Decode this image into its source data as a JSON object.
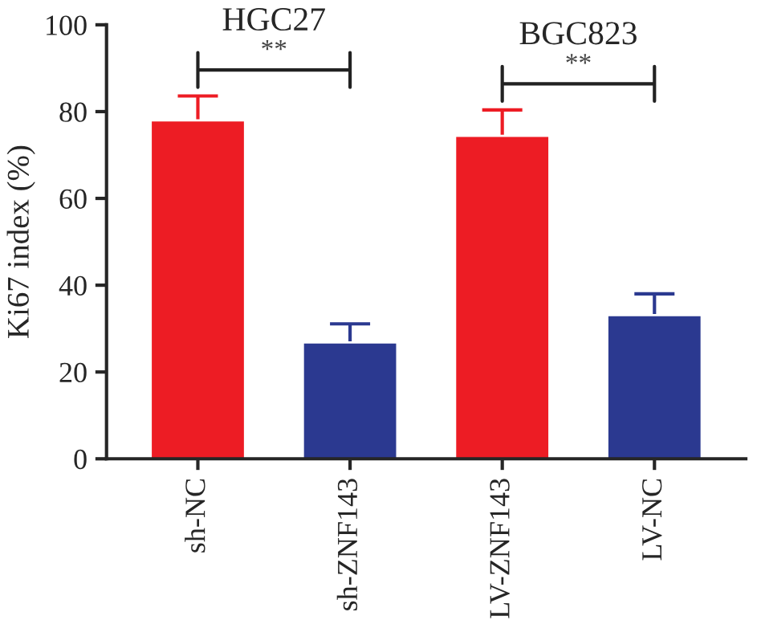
{
  "chart_data": {
    "type": "bar",
    "ylabel": "Ki67 index (%)",
    "categories": [
      "sh-NC",
      "sh-ZNF143",
      "LV-ZNF143",
      "LV-NC"
    ],
    "values": [
      78.0,
      26.8,
      74.4,
      33.1
    ],
    "errors": [
      5.6,
      4.3,
      6.0,
      4.9
    ],
    "colors": [
      "#ed1c24",
      "#2b3990",
      "#ed1c24",
      "#2b3990"
    ],
    "ylim": [
      0,
      100
    ],
    "yticks": [
      0,
      20,
      40,
      60,
      80,
      100
    ],
    "grid": false,
    "annotations": [
      "HGC27",
      "**",
      "BGC823",
      "**"
    ]
  }
}
